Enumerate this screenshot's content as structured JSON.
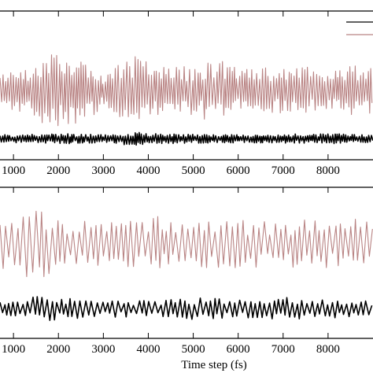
{
  "colors": {
    "series_a": "#000000",
    "series_b": "#b98484",
    "axis": "#000000"
  },
  "chart_data": [
    {
      "type": "line",
      "xlim": [
        700,
        9000
      ],
      "x_ticks": [
        1000,
        2000,
        3000,
        4000,
        5000,
        6000,
        7000,
        8000
      ],
      "x_tick_labels": [
        "1000",
        "2000",
        "3000",
        "4000",
        "5000",
        "6000",
        "7000",
        "8000"
      ],
      "ylim": [
        -1.2,
        3.4
      ],
      "grid": false,
      "legend_position": "top-right",
      "series": [
        {
          "color": "#b98484",
          "baseline": 0.95,
          "envelope": [
            [
              700,
              0.5
            ],
            [
              1200,
              0.7
            ],
            [
              1600,
              1.0
            ],
            [
              2000,
              1.2
            ],
            [
              2300,
              1.2
            ],
            [
              2700,
              0.9
            ],
            [
              3000,
              0.5
            ],
            [
              3300,
              0.8
            ],
            [
              3700,
              1.1
            ],
            [
              4000,
              0.9
            ],
            [
              4500,
              0.7
            ],
            [
              5000,
              0.8
            ],
            [
              5500,
              1.0
            ],
            [
              6000,
              0.7
            ],
            [
              6500,
              0.8
            ],
            [
              7000,
              0.7
            ],
            [
              7500,
              0.8
            ],
            [
              8000,
              0.6
            ],
            [
              8500,
              0.8
            ],
            [
              9000,
              0.7
            ]
          ],
          "period": 57
        },
        {
          "color": "#000000",
          "baseline": -0.55,
          "envelope": [
            [
              700,
              0.12
            ],
            [
              2000,
              0.16
            ],
            [
              3000,
              0.13
            ],
            [
              3700,
              0.22
            ],
            [
              4000,
              0.17
            ],
            [
              5000,
              0.14
            ],
            [
              6000,
              0.13
            ],
            [
              7000,
              0.14
            ],
            [
              8000,
              0.16
            ],
            [
              9000,
              0.12
            ]
          ],
          "period": 52
        }
      ]
    },
    {
      "type": "line",
      "xlim": [
        700,
        9000
      ],
      "x_ticks": [
        1000,
        2000,
        3000,
        4000,
        5000,
        6000,
        7000,
        8000
      ],
      "x_tick_labels": [
        "1000",
        "2000",
        "3000",
        "4000",
        "5000",
        "6000",
        "7000",
        "8000"
      ],
      "xlabel": "Time step (fs)",
      "ylim": [
        -0.2,
        2.6
      ],
      "grid": false,
      "series": [
        {
          "color": "#b98484",
          "baseline": 1.55,
          "envelope": [
            [
              700,
              0.45
            ],
            [
              1500,
              0.7
            ],
            [
              2000,
              0.5
            ],
            [
              3000,
              0.4
            ],
            [
              4000,
              0.55
            ],
            [
              5000,
              0.45
            ],
            [
              6000,
              0.45
            ],
            [
              7000,
              0.45
            ],
            [
              8000,
              0.45
            ],
            [
              8500,
              0.5
            ],
            [
              9000,
              0.4
            ]
          ],
          "period": 120
        },
        {
          "color": "#000000",
          "baseline": 0.35,
          "envelope": [
            [
              700,
              0.15
            ],
            [
              1800,
              0.25
            ],
            [
              2000,
              0.2
            ],
            [
              3000,
              0.15
            ],
            [
              4000,
              0.18
            ],
            [
              5000,
              0.2
            ],
            [
              6000,
              0.18
            ],
            [
              7000,
              0.22
            ],
            [
              8000,
              0.18
            ],
            [
              9000,
              0.15
            ]
          ],
          "period": 110
        }
      ]
    }
  ]
}
